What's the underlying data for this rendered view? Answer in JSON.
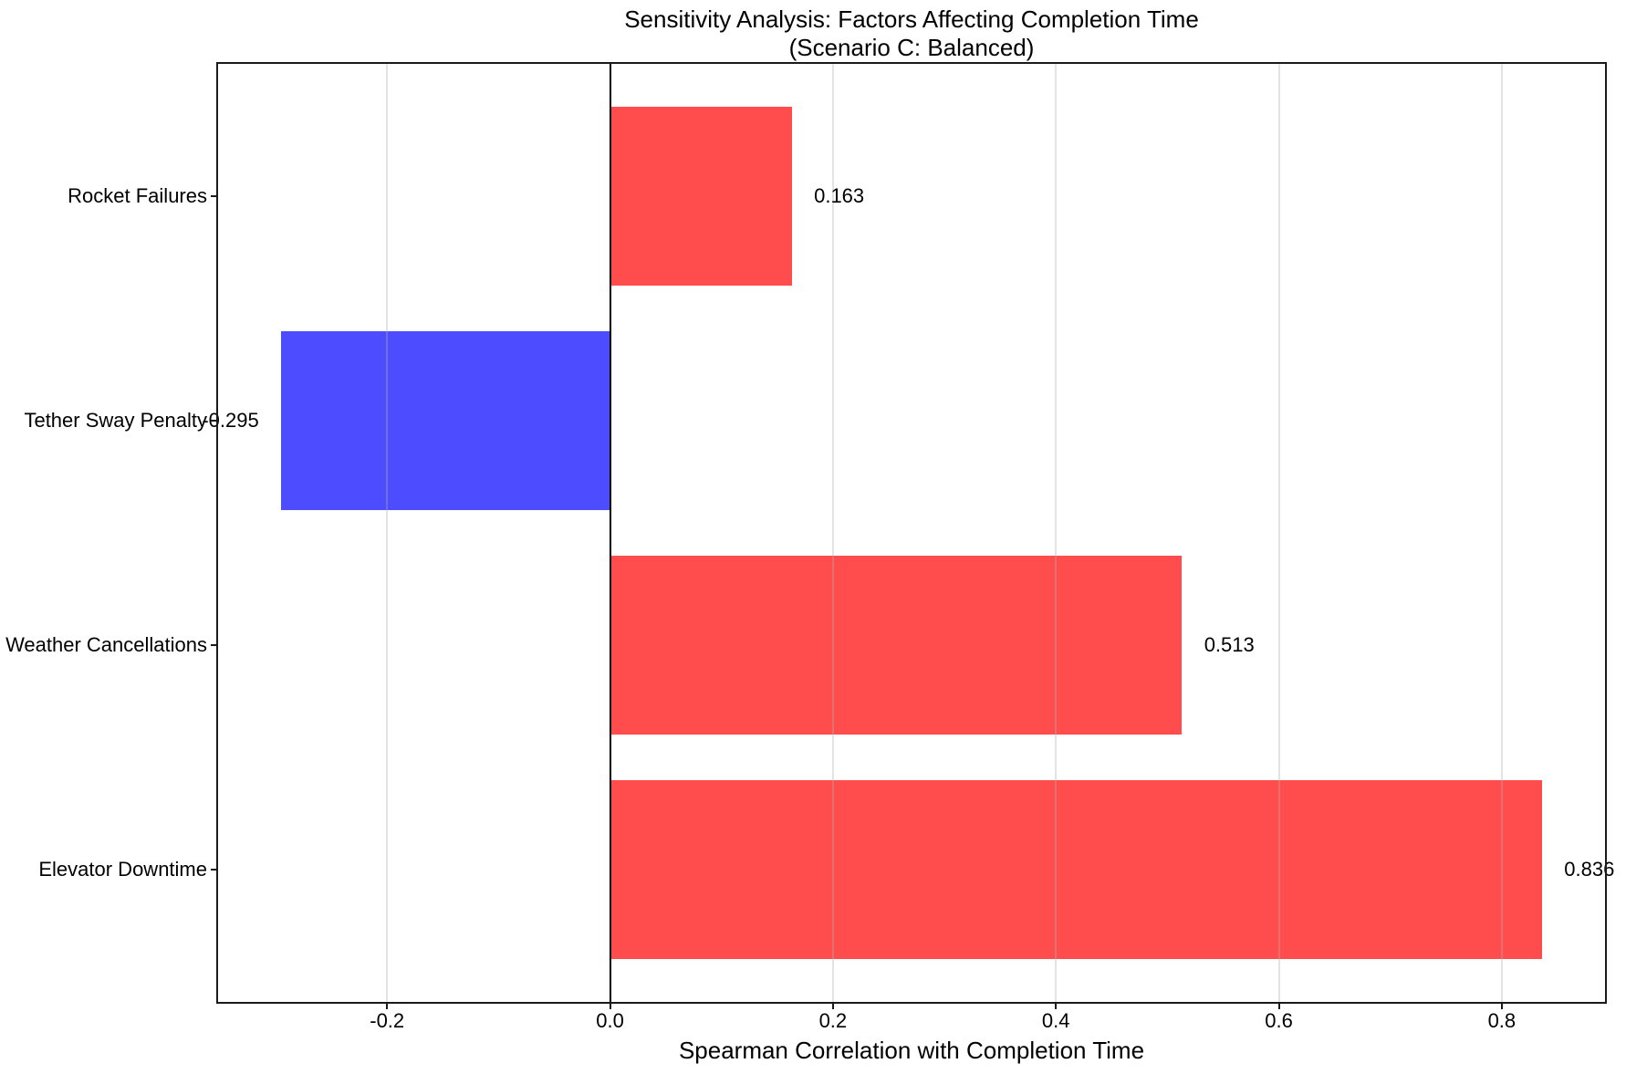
{
  "chart_data": {
    "type": "bar",
    "orientation": "horizontal",
    "title": "Sensitivity Analysis: Factors Affecting Completion Time",
    "subtitle": "(Scenario C: Balanced)",
    "xlabel": "Spearman Correlation with Completion Time",
    "categories": [
      "Rocket Failures",
      "Tether Sway Penalty",
      "Weather Cancellations",
      "Elevator Downtime"
    ],
    "values": [
      0.163,
      -0.295,
      0.513,
      0.836
    ],
    "value_labels": [
      "0.163",
      "-0.295",
      "0.513",
      "0.836"
    ],
    "xticks": [
      -0.2,
      0.0,
      0.2,
      0.4,
      0.6,
      0.8
    ],
    "xtick_labels": [
      "-0.2",
      "0.0",
      "0.2",
      "0.4",
      "0.6",
      "0.8"
    ],
    "xlim": [
      -0.3516,
      0.8926
    ],
    "bar_height_fraction": 0.8,
    "value_label_offset": 0.02,
    "grid": true,
    "legend": "none",
    "colors": {
      "positive_bar": "#FF4D4D",
      "negative_bar": "#4D4DFF",
      "zero_line": "#000000",
      "gridline": "#B0B0B0",
      "spine": "#1A1A1A",
      "text": "#000000"
    }
  }
}
